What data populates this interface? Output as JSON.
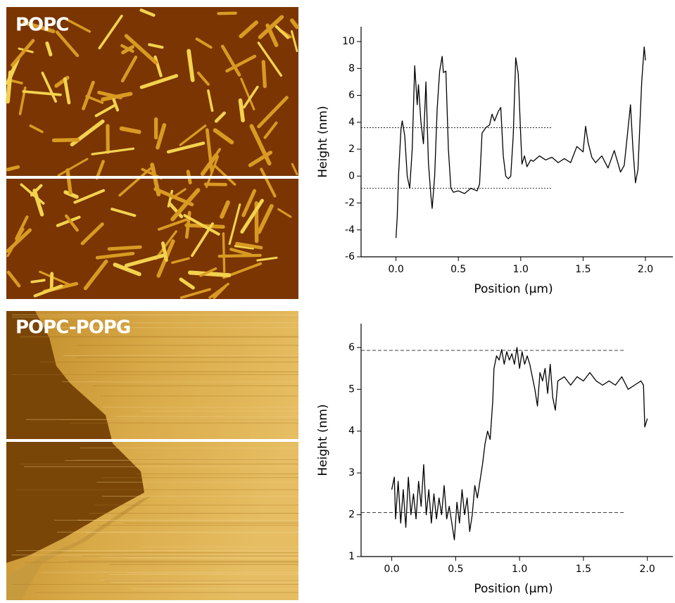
{
  "chart_data": [
    {
      "type": "line",
      "image_label": "POPC",
      "x_label": "Position (μm)",
      "y_label": "Height (nm)",
      "color": "#000000",
      "x": [
        0,
        0.01,
        0.02,
        0.04,
        0.05,
        0.07,
        0.09,
        0.11,
        0.13,
        0.15,
        0.17,
        0.18,
        0.2,
        0.22,
        0.24,
        0.26,
        0.28,
        0.29,
        0.31,
        0.33,
        0.35,
        0.37,
        0.38,
        0.4,
        0.42,
        0.44,
        0.46,
        0.5,
        0.55,
        0.6,
        0.65,
        0.67,
        0.69,
        0.72,
        0.75,
        0.77,
        0.79,
        0.82,
        0.84,
        0.86,
        0.88,
        0.9,
        0.92,
        0.94,
        0.96,
        0.98,
        1.0,
        1.01,
        1.03,
        1.05,
        1.08,
        1.1,
        1.15,
        1.2,
        1.25,
        1.3,
        1.35,
        1.4,
        1.45,
        1.5,
        1.52,
        1.54,
        1.57,
        1.6,
        1.65,
        1.7,
        1.75,
        1.8,
        1.83,
        1.86,
        1.88,
        1.9,
        1.92,
        1.94,
        1.97,
        1.99,
        2.0
      ],
      "values": [
        -4.6,
        -3,
        0,
        3.5,
        4.1,
        3,
        0,
        -0.9,
        2,
        8.2,
        5.3,
        6.8,
        4,
        2.4,
        7,
        1,
        -1.5,
        -2.4,
        0,
        5,
        7.8,
        8.9,
        7.7,
        7.8,
        2,
        -0.9,
        -1.2,
        -1.1,
        -1.3,
        -0.9,
        -1.1,
        -0.6,
        3.2,
        3.6,
        3.8,
        4.6,
        4.1,
        4.8,
        5.1,
        1.5,
        0,
        -0.2,
        0,
        3,
        8.8,
        7.6,
        3,
        0.9,
        1.5,
        0.7,
        1.2,
        1.1,
        1.5,
        1.2,
        1.4,
        1,
        1.3,
        1,
        2.2,
        1.8,
        3.7,
        2.5,
        1.4,
        1,
        1.5,
        0.6,
        1.9,
        0.3,
        0.8,
        3.5,
        5.3,
        2,
        -0.5,
        0.5,
        7,
        9.6,
        8.6
      ],
      "xlim": [
        -0.28,
        2.22
      ],
      "ylim": [
        -6,
        11.1
      ],
      "xticks": [
        {
          "value": 0,
          "label": "0.0"
        },
        0.5,
        {
          "value": 1,
          "label": "1.0"
        },
        1.5,
        {
          "value": 2,
          "label": "2.0"
        }
      ],
      "yticks": [
        -6,
        -4,
        -2,
        0,
        2,
        4,
        6,
        8,
        10
      ],
      "reference_lines": [
        3.6,
        -0.9
      ]
    },
    {
      "type": "line",
      "image_label": "POPC-POPG",
      "x_label": "Position (μm)",
      "y_label": "Height (nm)",
      "color": "#000000",
      "x": [
        0,
        0.02,
        0.03,
        0.05,
        0.07,
        0.09,
        0.11,
        0.13,
        0.15,
        0.17,
        0.19,
        0.21,
        0.23,
        0.25,
        0.27,
        0.29,
        0.31,
        0.33,
        0.35,
        0.37,
        0.39,
        0.41,
        0.43,
        0.45,
        0.47,
        0.49,
        0.51,
        0.53,
        0.55,
        0.57,
        0.59,
        0.61,
        0.63,
        0.65,
        0.67,
        0.69,
        0.71,
        0.73,
        0.75,
        0.77,
        0.79,
        0.8,
        0.82,
        0.84,
        0.86,
        0.88,
        0.9,
        0.92,
        0.94,
        0.96,
        0.98,
        1.0,
        1.02,
        1.04,
        1.06,
        1.08,
        1.1,
        1.12,
        1.14,
        1.16,
        1.18,
        1.2,
        1.22,
        1.24,
        1.26,
        1.28,
        1.3,
        1.35,
        1.4,
        1.45,
        1.5,
        1.55,
        1.6,
        1.65,
        1.7,
        1.75,
        1.8,
        1.85,
        1.9,
        1.95,
        1.97,
        1.98,
        2.0
      ],
      "values": [
        2.6,
        2.9,
        1.9,
        2.8,
        1.8,
        2.6,
        1.7,
        2.9,
        2,
        2.5,
        1.9,
        2.8,
        2.2,
        3.2,
        2,
        2.6,
        1.8,
        2.5,
        1.9,
        2.4,
        2,
        2.7,
        1.9,
        2.2,
        1.8,
        1.4,
        2.3,
        1.8,
        2.6,
        2,
        2.4,
        1.6,
        2,
        2.7,
        2.4,
        2.8,
        3.2,
        3.7,
        4,
        3.8,
        4.7,
        5.5,
        5.8,
        5.7,
        5.95,
        5.6,
        5.9,
        5.7,
        5.85,
        5.6,
        6,
        5.5,
        5.9,
        5.6,
        5.8,
        5.6,
        5.3,
        5,
        4.6,
        5.4,
        5.2,
        5.5,
        4.9,
        5.6,
        4.8,
        4.5,
        5.2,
        5.3,
        5.1,
        5.3,
        5.2,
        5.4,
        5.2,
        5.1,
        5.2,
        5.1,
        5.3,
        5,
        5.1,
        5.2,
        5.1,
        4.1,
        4.3
      ],
      "xlim": [
        -0.24,
        2.2
      ],
      "ylim": [
        1,
        6.57
      ],
      "xticks": [
        {
          "value": 0,
          "label": "0.0"
        },
        0.5,
        {
          "value": 1,
          "label": "1.0"
        },
        1.5,
        {
          "value": 2,
          "label": "2.0"
        }
      ],
      "yticks": [
        1,
        2,
        3,
        4,
        5,
        6
      ],
      "reference_lines": [
        5.93,
        2.05
      ]
    }
  ]
}
